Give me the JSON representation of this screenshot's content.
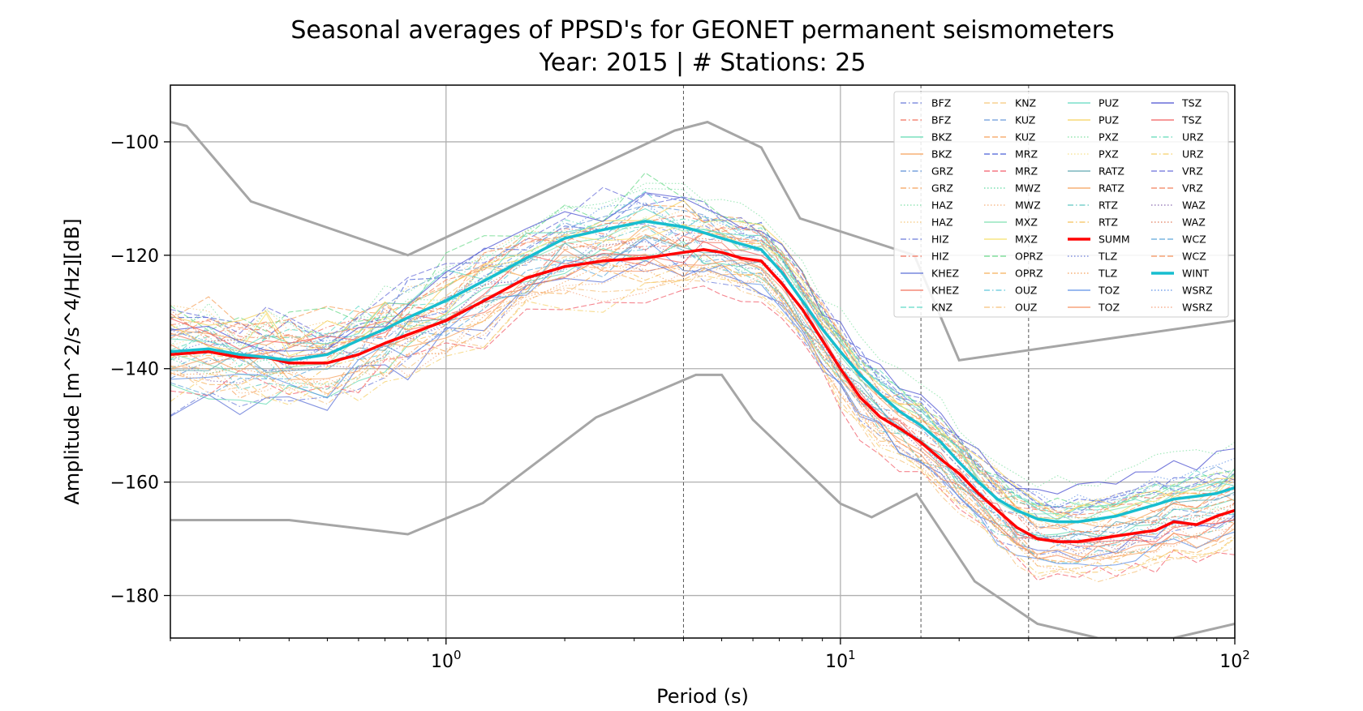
{
  "chart_data": {
    "type": "line",
    "title": "Seasonal averages of PPSD's for GEONET permanent seismometers",
    "subtitle": "Year: 2015 | # Stations: 25",
    "xlabel": "Period (s)",
    "ylabel": "Amplitude [m^2/s^4/Hz][dB]",
    "xscale": "log",
    "xlim": [
      0.2,
      100
    ],
    "ylim": [
      -187.5,
      -90
    ],
    "yticks": [
      -100,
      -120,
      -140,
      -160,
      -180
    ],
    "ytick_labels": [
      "−100",
      "−120",
      "−140",
      "−160",
      "−180"
    ],
    "xticks": [
      1,
      10,
      100
    ],
    "xtick_labels": [
      {
        "base": "10",
        "exp": "0"
      },
      {
        "base": "10",
        "exp": "1"
      },
      {
        "base": "10",
        "exp": "2"
      }
    ],
    "vlines": [
      4,
      16,
      30
    ],
    "grid": true,
    "legend_position": "top-right",
    "legend_columns": 4,
    "noise_model_color": "#a6a6a6",
    "noise_models": [
      {
        "x": [
          0.2,
          0.22,
          0.32,
          0.8,
          3.8,
          4.6,
          6.3,
          7.9,
          15.4,
          20,
          354.8
        ],
        "y": [
          -96.5,
          -97.2,
          -110.5,
          -120.0,
          -98.0,
          -96.5,
          -101.0,
          -113.5,
          -120.0,
          -138.5,
          -126.0
        ]
      },
      {
        "x": [
          0.2,
          0.4,
          0.8,
          1.24,
          2.4,
          4.3,
          5.0,
          6.0,
          10.0,
          12.0,
          15.6,
          21.9,
          31.6,
          45.0,
          70.0,
          100.0
        ],
        "y": [
          -166.7,
          -166.7,
          -169.2,
          -163.7,
          -148.6,
          -141.1,
          -141.1,
          -149.0,
          -163.8,
          -166.2,
          -162.1,
          -177.5,
          -185.0,
          -187.5,
          -187.5,
          -185.0
        ]
      }
    ],
    "series": [
      {
        "name": "SUMM",
        "color": "#ff0000",
        "width": 3.5,
        "dash": "solid",
        "x": [
          0.2,
          0.25,
          0.3,
          0.35,
          0.4,
          0.5,
          0.6,
          0.7,
          0.8,
          1.0,
          1.25,
          1.6,
          2.0,
          2.5,
          3.2,
          4.0,
          4.5,
          5.0,
          5.6,
          6.3,
          7.1,
          8.0,
          9.0,
          10.0,
          11.2,
          12.6,
          14.1,
          16.0,
          18.0,
          20.0,
          22.4,
          25.0,
          28.0,
          31.6,
          35.5,
          40.0,
          45.0,
          50.0,
          56.0,
          63.0,
          70.0,
          80.0,
          90.0,
          100.0
        ],
        "y": [
          -137.5,
          -137.0,
          -138.0,
          -138.0,
          -139.0,
          -139.0,
          -137.5,
          -135.5,
          -134.0,
          -131.5,
          -128.0,
          -124.0,
          -122.0,
          -121.0,
          -120.5,
          -119.5,
          -119.0,
          -119.5,
          -120.5,
          -121.0,
          -125.0,
          -129.5,
          -135.0,
          -140.0,
          -145.0,
          -148.5,
          -150.5,
          -153.0,
          -156.0,
          -158.5,
          -162.0,
          -165.0,
          -168.0,
          -170.0,
          -170.5,
          -170.5,
          -170.0,
          -169.5,
          -169.0,
          -168.5,
          -167.0,
          -167.5,
          -166.0,
          -165.0
        ]
      },
      {
        "name": "WINT",
        "color": "#17becf",
        "width": 3.5,
        "dash": "solid",
        "x": [
          0.2,
          0.25,
          0.3,
          0.35,
          0.4,
          0.5,
          0.6,
          0.7,
          0.8,
          1.0,
          1.25,
          1.6,
          2.0,
          2.5,
          3.2,
          4.0,
          4.5,
          5.0,
          5.6,
          6.3,
          7.1,
          8.0,
          9.0,
          10.0,
          11.2,
          12.6,
          14.1,
          16.0,
          18.0,
          20.0,
          22.4,
          25.0,
          28.0,
          31.6,
          35.5,
          40.0,
          45.0,
          50.0,
          56.0,
          63.0,
          70.0,
          80.0,
          90.0,
          100.0
        ],
        "y": [
          -137.0,
          -136.5,
          -137.5,
          -138.0,
          -138.5,
          -137.5,
          -135.0,
          -133.0,
          -131.0,
          -128.0,
          -124.5,
          -120.5,
          -117.0,
          -115.5,
          -114.0,
          -115.0,
          -116.0,
          -117.0,
          -118.0,
          -119.0,
          -123.0,
          -128.0,
          -133.0,
          -137.0,
          -141.0,
          -144.5,
          -147.5,
          -150.0,
          -153.0,
          -156.5,
          -160.0,
          -163.0,
          -165.0,
          -166.5,
          -167.0,
          -167.0,
          -166.5,
          -166.0,
          -165.0,
          -164.0,
          -163.0,
          -162.5,
          -162.0,
          -161.0
        ]
      }
    ],
    "station_traces_note": "",
    "station_legend": [
      {
        "name": "BFZ",
        "color": "#6a7bd9",
        "dash": "dashdot"
      },
      {
        "name": "BFZ",
        "color": "#f2725c",
        "dash": "dashdot"
      },
      {
        "name": "BKZ",
        "color": "#5fd9b0",
        "dash": "solid"
      },
      {
        "name": "BKZ",
        "color": "#f5a05a",
        "dash": "solid"
      },
      {
        "name": "GRZ",
        "color": "#5c8fd6",
        "dash": "dashdot"
      },
      {
        "name": "GRZ",
        "color": "#f5a05a",
        "dash": "dashdot"
      },
      {
        "name": "HAZ",
        "color": "#7fe0a8",
        "dash": "dotted"
      },
      {
        "name": "HAZ",
        "color": "#f5c77a",
        "dash": "dotted"
      },
      {
        "name": "HIZ",
        "color": "#6a7bd9",
        "dash": "dashdot"
      },
      {
        "name": "HIZ",
        "color": "#f2725c",
        "dash": "dashdot"
      },
      {
        "name": "KHEZ",
        "color": "#5a6fd6",
        "dash": "solid"
      },
      {
        "name": "KHEZ",
        "color": "#f2725c",
        "dash": "solid"
      },
      {
        "name": "KNZ",
        "color": "#5fd9c8",
        "dash": "dashed"
      },
      {
        "name": "KNZ",
        "color": "#f5c77a",
        "dash": "dashed"
      },
      {
        "name": "KUZ",
        "color": "#6a9ad9",
        "dash": "dashed"
      },
      {
        "name": "KUZ",
        "color": "#f5a05a",
        "dash": "dashed"
      },
      {
        "name": "MRZ",
        "color": "#4a5fd6",
        "dash": "dashed"
      },
      {
        "name": "MRZ",
        "color": "#f25c6a",
        "dash": "dashed"
      },
      {
        "name": "MWZ",
        "color": "#5fd9a0",
        "dash": "dotted"
      },
      {
        "name": "MWZ",
        "color": "#f5b07a",
        "dash": "dotted"
      },
      {
        "name": "MXZ",
        "color": "#7fe0b0",
        "dash": "solid"
      },
      {
        "name": "MXZ",
        "color": "#f5e06a",
        "dash": "solid"
      },
      {
        "name": "OPRZ",
        "color": "#6ad98a",
        "dash": "dashed"
      },
      {
        "name": "OPRZ",
        "color": "#f5b05a",
        "dash": "dashed"
      },
      {
        "name": "OUZ",
        "color": "#5fc8d9",
        "dash": "dashdot"
      },
      {
        "name": "OUZ",
        "color": "#f5c07a",
        "dash": "dashdot"
      },
      {
        "name": "PUZ",
        "color": "#5fd9c0",
        "dash": "solid"
      },
      {
        "name": "PUZ",
        "color": "#f5d05a",
        "dash": "solid"
      },
      {
        "name": "PXZ",
        "color": "#7fe0a0",
        "dash": "dotted"
      },
      {
        "name": "PXZ",
        "color": "#f5e08a",
        "dash": "dotted"
      },
      {
        "name": "RATZ",
        "color": "#5fa8b0",
        "dash": "solid"
      },
      {
        "name": "RATZ",
        "color": "#f5a05a",
        "dash": "solid"
      },
      {
        "name": "RTZ",
        "color": "#5fc8c0",
        "dash": "dashdot"
      },
      {
        "name": "RTZ",
        "color": "#f5c05a",
        "dash": "dashdot"
      },
      {
        "name": "SUMM",
        "color": "#ff0000",
        "dash": "solid",
        "bold": true
      },
      {
        "name": "TLZ",
        "color": "#6a7bd9",
        "dash": "dotted"
      },
      {
        "name": "TLZ",
        "color": "#f5a05a",
        "dash": "dotted"
      },
      {
        "name": "TOZ",
        "color": "#5c8fe6",
        "dash": "solid"
      },
      {
        "name": "TOZ",
        "color": "#f59060",
        "dash": "solid"
      },
      {
        "name": "TSZ",
        "color": "#4a4fd0",
        "dash": "solid"
      },
      {
        "name": "TSZ",
        "color": "#f25c5c",
        "dash": "solid"
      },
      {
        "name": "URZ",
        "color": "#5fd9b8",
        "dash": "dashdot"
      },
      {
        "name": "URZ",
        "color": "#f5d06a",
        "dash": "dashdot"
      },
      {
        "name": "VRZ",
        "color": "#6a6fd9",
        "dash": "dashed"
      },
      {
        "name": "VRZ",
        "color": "#f2805c",
        "dash": "dashed"
      },
      {
        "name": "WAZ",
        "color": "#8a6ab0",
        "dash": "dotted"
      },
      {
        "name": "WAZ",
        "color": "#e07a5a",
        "dash": "dotted"
      },
      {
        "name": "WCZ",
        "color": "#5fa8d9",
        "dash": "dashed"
      },
      {
        "name": "WCZ",
        "color": "#f5905a",
        "dash": "dashed"
      },
      {
        "name": "WINT",
        "color": "#17becf",
        "dash": "solid",
        "bold": true
      },
      {
        "name": "WSRZ",
        "color": "#5c8fe6",
        "dash": "dotted"
      },
      {
        "name": "WSRZ",
        "color": "#f5a07a",
        "dash": "dotted"
      }
    ]
  }
}
